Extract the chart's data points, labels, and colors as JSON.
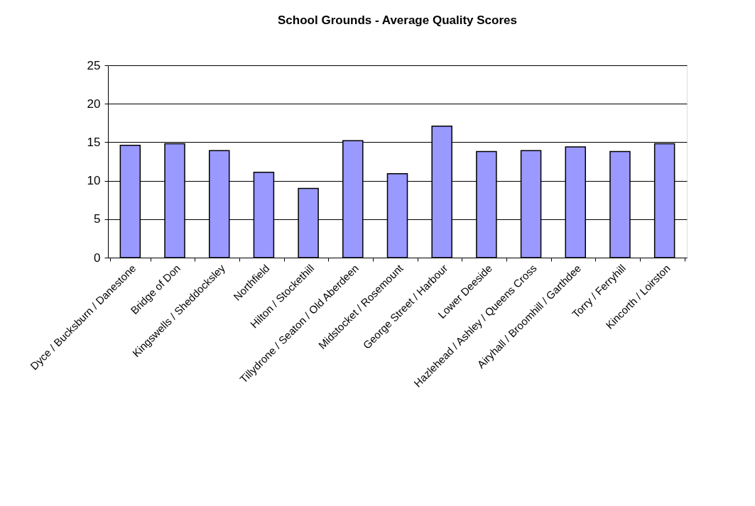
{
  "chart_data": {
    "type": "bar",
    "title": "School Grounds - Average Quality Scores",
    "categories": [
      "Dyce / Bucksburn / Danestone",
      "Bridge of Don",
      "Kingswells / Sheddocksley",
      "Northfield",
      "Hilton / Stockethill",
      "Tillydrone / Seaton / Old Aberdeen",
      "Midstocket / Rosemount",
      "George Street / Harbour",
      "Lower Deeside",
      "Hazlehead / Ashley / Queens Cross",
      "Airyhall / Broomhill / Garthdee",
      "Torry / Ferryhill",
      "Kincorth / Loirston"
    ],
    "values": [
      14.6,
      14.8,
      13.9,
      11.1,
      9.0,
      15.2,
      10.9,
      17.1,
      13.8,
      13.9,
      14.4,
      13.8,
      14.8
    ],
    "color": "#9999ff",
    "ylim": [
      0,
      25
    ],
    "yticks": [
      0,
      5,
      10,
      15,
      20,
      25
    ],
    "grid": "y",
    "legend": false
  }
}
